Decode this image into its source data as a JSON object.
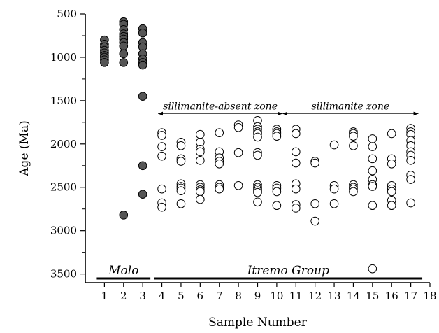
{
  "chart_data": {
    "type": "scatter",
    "xlabel": "Sample Number",
    "ylabel": "Age (Ma)",
    "xlim": [
      0,
      18
    ],
    "ylim": [
      3600,
      500
    ],
    "y_reversed": true,
    "x_ticks": [
      1,
      2,
      3,
      4,
      5,
      6,
      7,
      8,
      9,
      10,
      11,
      12,
      13,
      14,
      15,
      16,
      17,
      18
    ],
    "y_ticks": [
      500,
      1000,
      1500,
      2000,
      2500,
      3000,
      3500
    ],
    "grid": false,
    "legend": "none",
    "colors": {
      "filled": "#555555",
      "open": "#ffffff",
      "stroke": "#000000"
    },
    "annotations": [
      {
        "text": "sillimanite-absent zone",
        "x_start": 3.8,
        "x_end": 10.3,
        "y": 1650
      },
      {
        "text": "sillimanite zone",
        "x_start": 10.3,
        "x_end": 17.4,
        "y": 1650
      }
    ],
    "groups": [
      {
        "text": "Molo",
        "x_start": 0.6,
        "x_end": 3.4
      },
      {
        "text": "Itremo Group",
        "x_start": 3.6,
        "x_end": 17.6
      }
    ],
    "series": [
      {
        "marker": "filled",
        "points": [
          [
            1,
            800
          ],
          [
            1,
            850
          ],
          [
            1,
            880
          ],
          [
            1,
            920
          ],
          [
            1,
            950
          ],
          [
            1,
            980
          ],
          [
            1,
            1000
          ],
          [
            1,
            1030
          ],
          [
            1,
            1060
          ],
          [
            2,
            590
          ],
          [
            2,
            620
          ],
          [
            2,
            680
          ],
          [
            2,
            730
          ],
          [
            2,
            760
          ],
          [
            2,
            790
          ],
          [
            2,
            830
          ],
          [
            2,
            870
          ],
          [
            2,
            960
          ],
          [
            2,
            1060
          ],
          [
            2,
            2820
          ],
          [
            3,
            670
          ],
          [
            3,
            720
          ],
          [
            3,
            830
          ],
          [
            3,
            880
          ],
          [
            3,
            960
          ],
          [
            3,
            1020
          ],
          [
            3,
            1060
          ],
          [
            3,
            1090
          ],
          [
            3,
            1450
          ],
          [
            3,
            2250
          ],
          [
            3,
            2580
          ]
        ]
      },
      {
        "marker": "open",
        "points": [
          [
            4,
            1870
          ],
          [
            4,
            1900
          ],
          [
            4,
            2030
          ],
          [
            4,
            2140
          ],
          [
            4,
            2520
          ],
          [
            4,
            2680
          ],
          [
            4,
            2730
          ],
          [
            5,
            1980
          ],
          [
            5,
            2020
          ],
          [
            5,
            2170
          ],
          [
            5,
            2200
          ],
          [
            5,
            2460
          ],
          [
            5,
            2490
          ],
          [
            5,
            2510
          ],
          [
            5,
            2540
          ],
          [
            5,
            2690
          ],
          [
            6,
            1890
          ],
          [
            6,
            1980
          ],
          [
            6,
            2060
          ],
          [
            6,
            2090
          ],
          [
            6,
            2190
          ],
          [
            6,
            2470
          ],
          [
            6,
            2500
          ],
          [
            6,
            2530
          ],
          [
            6,
            2550
          ],
          [
            6,
            2640
          ],
          [
            7,
            1870
          ],
          [
            7,
            2090
          ],
          [
            7,
            2160
          ],
          [
            7,
            2200
          ],
          [
            7,
            2230
          ],
          [
            7,
            2470
          ],
          [
            7,
            2500
          ],
          [
            7,
            2520
          ],
          [
            8,
            1780
          ],
          [
            8,
            1810
          ],
          [
            8,
            2100
          ],
          [
            8,
            2480
          ],
          [
            9,
            1730
          ],
          [
            9,
            1800
          ],
          [
            9,
            1830
          ],
          [
            9,
            1860
          ],
          [
            9,
            1880
          ],
          [
            9,
            1920
          ],
          [
            9,
            2100
          ],
          [
            9,
            2130
          ],
          [
            9,
            2470
          ],
          [
            9,
            2500
          ],
          [
            9,
            2520
          ],
          [
            9,
            2540
          ],
          [
            9,
            2560
          ],
          [
            9,
            2670
          ],
          [
            10,
            1830
          ],
          [
            10,
            1860
          ],
          [
            10,
            1880
          ],
          [
            10,
            1910
          ],
          [
            10,
            2480
          ],
          [
            10,
            2510
          ],
          [
            10,
            2550
          ],
          [
            10,
            2710
          ],
          [
            11,
            1830
          ],
          [
            11,
            1880
          ],
          [
            11,
            2090
          ],
          [
            11,
            2220
          ],
          [
            11,
            2460
          ],
          [
            11,
            2520
          ],
          [
            11,
            2700
          ],
          [
            11,
            2740
          ],
          [
            12,
            2200
          ],
          [
            12,
            2220
          ],
          [
            12,
            2690
          ],
          [
            12,
            2890
          ],
          [
            13,
            2010
          ],
          [
            13,
            2480
          ],
          [
            13,
            2520
          ],
          [
            13,
            2690
          ],
          [
            14,
            1860
          ],
          [
            14,
            1880
          ],
          [
            14,
            1910
          ],
          [
            14,
            2020
          ],
          [
            14,
            2470
          ],
          [
            14,
            2500
          ],
          [
            14,
            2520
          ],
          [
            14,
            2550
          ],
          [
            15,
            1940
          ],
          [
            15,
            2030
          ],
          [
            15,
            2170
          ],
          [
            15,
            2310
          ],
          [
            15,
            2410
          ],
          [
            15,
            2470
          ],
          [
            15,
            2490
          ],
          [
            15,
            2710
          ],
          [
            15,
            3440
          ],
          [
            16,
            1880
          ],
          [
            16,
            2170
          ],
          [
            16,
            2230
          ],
          [
            16,
            2480
          ],
          [
            16,
            2520
          ],
          [
            16,
            2550
          ],
          [
            16,
            2650
          ],
          [
            16,
            2710
          ],
          [
            17,
            1820
          ],
          [
            17,
            1860
          ],
          [
            17,
            1890
          ],
          [
            17,
            1960
          ],
          [
            17,
            2020
          ],
          [
            17,
            2090
          ],
          [
            17,
            2130
          ],
          [
            17,
            2190
          ],
          [
            17,
            2360
          ],
          [
            17,
            2410
          ],
          [
            17,
            2680
          ]
        ]
      }
    ]
  }
}
